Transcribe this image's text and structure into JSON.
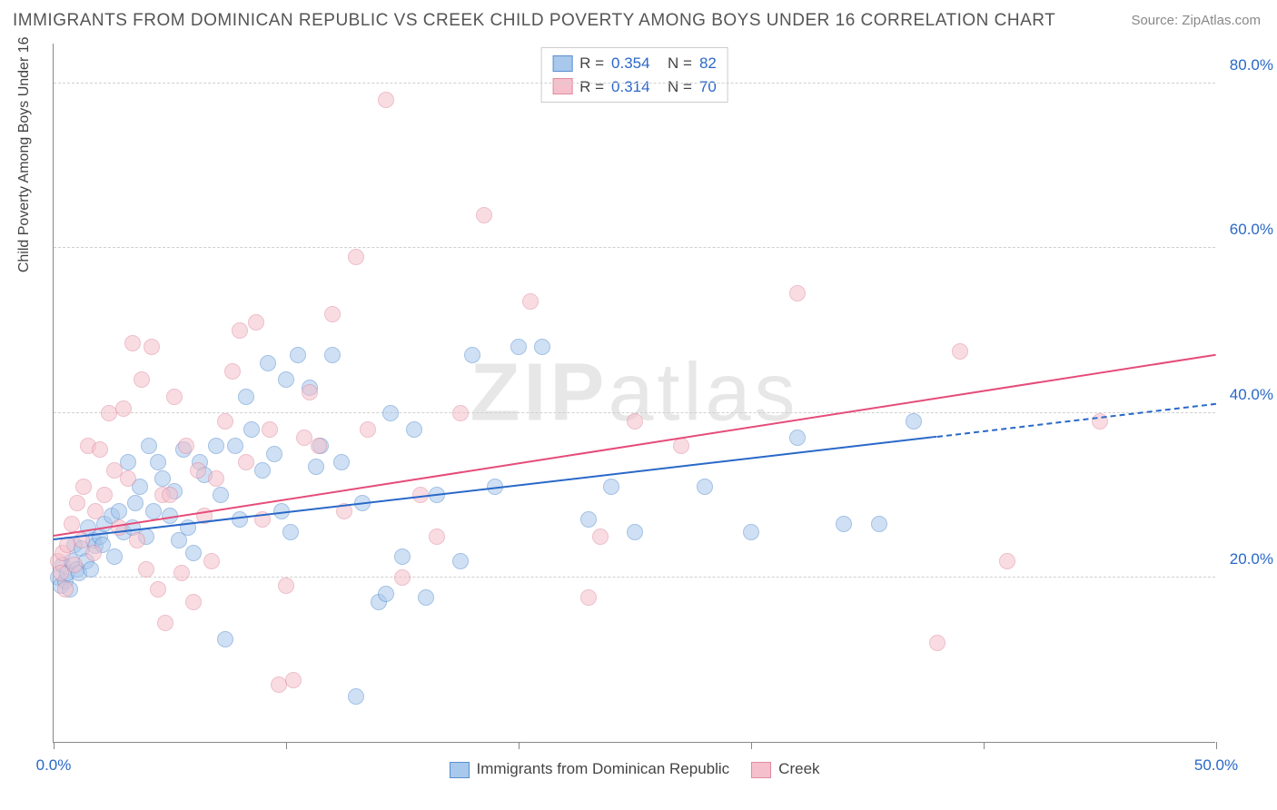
{
  "title": "IMMIGRANTS FROM DOMINICAN REPUBLIC VS CREEK CHILD POVERTY AMONG BOYS UNDER 16 CORRELATION CHART",
  "source": "Source: ZipAtlas.com",
  "ylabel": "Child Poverty Among Boys Under 16",
  "watermark_bold": "ZIP",
  "watermark_light": "atlas",
  "chart": {
    "type": "scatter",
    "xlim": [
      0,
      50
    ],
    "ylim": [
      0,
      85
    ],
    "xtick_positions": [
      0,
      10,
      20,
      30,
      40,
      50
    ],
    "xtick_labels": {
      "0": "0.0%",
      "50": "50.0%"
    },
    "ytick_positions": [
      20,
      40,
      60,
      80
    ],
    "ytick_labels": {
      "20": "20.0%",
      "40": "40.0%",
      "60": "60.0%",
      "80": "80.0%"
    },
    "grid_color": "#d0d0d0",
    "axis_color": "#888888",
    "tick_label_color": "#2968c8",
    "background_color": "#ffffff",
    "point_radius": 9,
    "point_opacity": 0.55
  },
  "series": [
    {
      "key": "dominican",
      "label": "Immigrants from Dominican Republic",
      "fill_color": "#a8c8ec",
      "stroke_color": "#5a8fd0",
      "line_color": "#2968c8",
      "R": "0.354",
      "N": "82",
      "trend": {
        "x0": 0,
        "y0": 24.5,
        "x1": 38,
        "y1": 37,
        "x_dash_end": 50,
        "y_dash_end": 41
      },
      "points": [
        [
          0.2,
          20
        ],
        [
          0.3,
          19
        ],
        [
          0.4,
          21.5
        ],
        [
          0.5,
          19.5
        ],
        [
          0.6,
          20.5
        ],
        [
          0.7,
          18.5
        ],
        [
          0.8,
          22
        ],
        [
          1,
          21
        ],
        [
          0.9,
          24
        ],
        [
          1.1,
          20.5
        ],
        [
          1.2,
          23.5
        ],
        [
          1.4,
          22
        ],
        [
          1.5,
          26
        ],
        [
          1.6,
          21
        ],
        [
          1.7,
          24.5
        ],
        [
          1.8,
          23.8
        ],
        [
          2,
          25
        ],
        [
          2.1,
          24
        ],
        [
          2.2,
          26.5
        ],
        [
          2.5,
          27.5
        ],
        [
          2.6,
          22.5
        ],
        [
          2.8,
          28
        ],
        [
          3,
          25.5
        ],
        [
          3.2,
          34
        ],
        [
          3.4,
          26
        ],
        [
          3.5,
          29
        ],
        [
          3.7,
          31
        ],
        [
          4,
          25
        ],
        [
          4.1,
          36
        ],
        [
          4.3,
          28
        ],
        [
          4.5,
          34
        ],
        [
          4.7,
          32
        ],
        [
          5,
          27.5
        ],
        [
          5.2,
          30.5
        ],
        [
          5.4,
          24.5
        ],
        [
          5.6,
          35.5
        ],
        [
          5.8,
          26
        ],
        [
          6,
          23
        ],
        [
          6.3,
          34
        ],
        [
          6.5,
          32.5
        ],
        [
          7,
          36
        ],
        [
          7.2,
          30
        ],
        [
          7.4,
          12.5
        ],
        [
          7.8,
          36
        ],
        [
          8,
          27
        ],
        [
          8.3,
          42
        ],
        [
          8.5,
          38
        ],
        [
          9,
          33
        ],
        [
          9.2,
          46
        ],
        [
          9.5,
          35
        ],
        [
          9.8,
          28
        ],
        [
          10,
          44
        ],
        [
          10.2,
          25.5
        ],
        [
          10.5,
          47
        ],
        [
          11,
          43
        ],
        [
          11.3,
          33.5
        ],
        [
          11.5,
          36
        ],
        [
          12,
          47
        ],
        [
          12.4,
          34
        ],
        [
          13,
          5.5
        ],
        [
          13.3,
          29
        ],
        [
          14,
          17
        ],
        [
          14.3,
          18
        ],
        [
          14.5,
          40
        ],
        [
          15,
          22.5
        ],
        [
          15.5,
          38
        ],
        [
          16,
          17.5
        ],
        [
          16.5,
          30
        ],
        [
          17.5,
          22
        ],
        [
          18,
          47
        ],
        [
          19,
          31
        ],
        [
          20,
          48
        ],
        [
          21,
          48
        ],
        [
          23,
          27
        ],
        [
          24,
          31
        ],
        [
          25,
          25.5
        ],
        [
          28,
          31
        ],
        [
          30,
          25.5
        ],
        [
          32,
          37
        ],
        [
          34,
          26.5
        ],
        [
          35.5,
          26.5
        ],
        [
          37,
          39
        ]
      ]
    },
    {
      "key": "creek",
      "label": "Creek",
      "fill_color": "#f5c0cb",
      "stroke_color": "#e08ba0",
      "line_color": "#e54c7a",
      "R": "0.314",
      "N": "70",
      "trend": {
        "x0": 0,
        "y0": 25,
        "x1": 50,
        "y1": 47
      },
      "points": [
        [
          0.2,
          22
        ],
        [
          0.3,
          20.5
        ],
        [
          0.4,
          23
        ],
        [
          0.5,
          18.5
        ],
        [
          0.6,
          24
        ],
        [
          0.8,
          26.5
        ],
        [
          0.9,
          21.5
        ],
        [
          1,
          29
        ],
        [
          1.2,
          24.5
        ],
        [
          1.3,
          31
        ],
        [
          1.5,
          36
        ],
        [
          1.7,
          23
        ],
        [
          1.8,
          28
        ],
        [
          2,
          35.5
        ],
        [
          2.2,
          30
        ],
        [
          2.4,
          40
        ],
        [
          2.6,
          33
        ],
        [
          2.8,
          26
        ],
        [
          3,
          40.5
        ],
        [
          3.2,
          32
        ],
        [
          3.4,
          48.5
        ],
        [
          3.6,
          24.5
        ],
        [
          3.8,
          44
        ],
        [
          4,
          21
        ],
        [
          4.2,
          48
        ],
        [
          4.5,
          18.5
        ],
        [
          4.7,
          30
        ],
        [
          4.8,
          14.5
        ],
        [
          5,
          30
        ],
        [
          5.2,
          42
        ],
        [
          5.5,
          20.5
        ],
        [
          5.7,
          36
        ],
        [
          6,
          17
        ],
        [
          6.2,
          33
        ],
        [
          6.5,
          27.5
        ],
        [
          6.8,
          22
        ],
        [
          7,
          32
        ],
        [
          7.4,
          39
        ],
        [
          7.7,
          45
        ],
        [
          8,
          50
        ],
        [
          8.3,
          34
        ],
        [
          8.7,
          51
        ],
        [
          9,
          27
        ],
        [
          9.3,
          38
        ],
        [
          9.7,
          7
        ],
        [
          10,
          19
        ],
        [
          10.3,
          7.5
        ],
        [
          10.8,
          37
        ],
        [
          11,
          42.5
        ],
        [
          11.4,
          36
        ],
        [
          12,
          52
        ],
        [
          12.5,
          28
        ],
        [
          13,
          59
        ],
        [
          13.5,
          38
        ],
        [
          14.3,
          78
        ],
        [
          15,
          20
        ],
        [
          15.8,
          30
        ],
        [
          16.5,
          25
        ],
        [
          17.5,
          40
        ],
        [
          18.5,
          64
        ],
        [
          20.5,
          53.5
        ],
        [
          23,
          17.5
        ],
        [
          23.5,
          25
        ],
        [
          25,
          39
        ],
        [
          27,
          36
        ],
        [
          32,
          54.5
        ],
        [
          38,
          12
        ],
        [
          39,
          47.5
        ],
        [
          41,
          22
        ],
        [
          45,
          39
        ]
      ]
    }
  ],
  "legend_top": {
    "R_label": "R =",
    "N_label": "N ="
  },
  "legend_bottom": {}
}
